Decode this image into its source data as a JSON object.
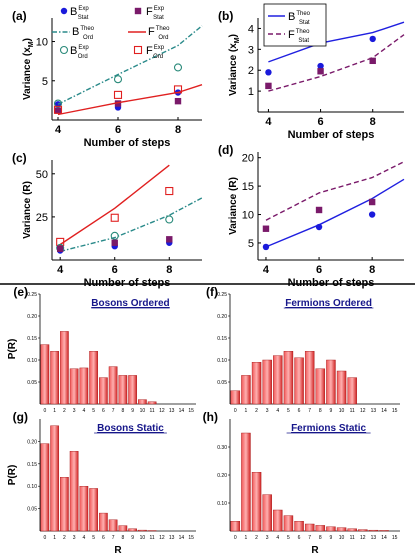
{
  "chart_data": [
    {
      "panel": "(a)",
      "type": "line",
      "ylabel": "Variance (x_M)",
      "xlabel": "Number of steps",
      "xlim": [
        3.8,
        8.8
      ],
      "ylim": [
        0,
        13
      ],
      "xticks": [
        4,
        6,
        8
      ],
      "yticks": [
        5,
        10
      ],
      "legend": [
        "B_Stat Exp",
        "F_Stat Exp",
        "B_Ord Theo",
        "F_Ord Theo",
        "B_Ord Exp",
        "F_Ord Exp"
      ],
      "series": [
        {
          "name": "B_Stat Exp",
          "x": [
            4,
            6,
            8
          ],
          "y": [
            2.0,
            1.6,
            3.5
          ]
        },
        {
          "name": "F_Stat Exp",
          "x": [
            4,
            6,
            8
          ],
          "y": [
            1.2,
            2.1,
            2.4
          ]
        },
        {
          "name": "B_Ord Theo",
          "x": [
            4,
            6,
            8,
            8.8
          ],
          "y": [
            2.0,
            5.8,
            9.5,
            12.0
          ]
        },
        {
          "name": "F_Ord Theo",
          "x": [
            4,
            6,
            8,
            8.8
          ],
          "y": [
            0.7,
            2.2,
            3.5,
            4.5
          ]
        },
        {
          "name": "B_Ord Exp",
          "x": [
            4,
            6,
            8
          ],
          "y": [
            2.1,
            5.2,
            6.7
          ]
        },
        {
          "name": "F_Ord Exp",
          "x": [
            4,
            6,
            8
          ],
          "y": [
            1.3,
            3.2,
            3.9
          ]
        }
      ]
    },
    {
      "panel": "(b)",
      "type": "line",
      "ylabel": "Variance (x_M)",
      "xlabel": "Number of steps",
      "xlim": [
        3.6,
        9.2
      ],
      "ylim": [
        0,
        4.5
      ],
      "xticks": [
        4,
        6,
        8
      ],
      "yticks": [
        1,
        2,
        3,
        4
      ],
      "legend": [
        "B_Stat Theo",
        "F_Stat Theo"
      ],
      "series": [
        {
          "name": "B_Stat Theo",
          "x": [
            4,
            6,
            8,
            9.2
          ],
          "y": [
            2.4,
            3.3,
            3.8,
            4.3
          ]
        },
        {
          "name": "F_Stat Theo",
          "x": [
            4,
            6,
            8,
            9.2
          ],
          "y": [
            1.0,
            1.7,
            2.6,
            3.7
          ]
        },
        {
          "name": "B_Stat Exp",
          "x": [
            4,
            6,
            8
          ],
          "y": [
            1.9,
            2.2,
            3.5
          ]
        },
        {
          "name": "F_Stat Exp",
          "x": [
            4,
            6,
            8
          ],
          "y": [
            1.25,
            1.95,
            2.45
          ]
        }
      ]
    },
    {
      "panel": "(c)",
      "type": "line",
      "ylabel": "Variance (R)",
      "xlabel": "Number of steps",
      "xlim": [
        3.7,
        9.2
      ],
      "ylim": [
        0,
        58
      ],
      "xticks": [
        4,
        6,
        8
      ],
      "yticks": [
        25,
        50
      ],
      "series": [
        {
          "name": "F_Ord Theo",
          "x": [
            4,
            6,
            8
          ],
          "y": [
            9,
            30,
            55
          ]
        },
        {
          "name": "B_Ord Theo",
          "x": [
            4,
            6,
            8,
            9.2
          ],
          "y": [
            5,
            13,
            26,
            36
          ]
        },
        {
          "name": "F_Ord Exp",
          "x": [
            4,
            6,
            8
          ],
          "y": [
            10.5,
            24.5,
            40
          ]
        },
        {
          "name": "B_Ord Exp",
          "x": [
            4,
            6,
            8
          ],
          "y": [
            7,
            14,
            23.5
          ]
        },
        {
          "name": "B_Stat Exp",
          "x": [
            4,
            6,
            8
          ],
          "y": [
            5.5,
            8,
            10
          ]
        },
        {
          "name": "F_Stat Exp",
          "x": [
            4,
            6,
            8
          ],
          "y": [
            6.5,
            10,
            12
          ]
        }
      ]
    },
    {
      "panel": "(d)",
      "type": "line",
      "ylabel": "Variance (R)",
      "xlabel": "Number of steps",
      "xlim": [
        3.7,
        9.2
      ],
      "ylim": [
        2,
        21
      ],
      "xticks": [
        4,
        6,
        8
      ],
      "yticks": [
        5,
        10,
        15,
        20
      ],
      "series": [
        {
          "name": "B_Stat Theo",
          "x": [
            4,
            6,
            8,
            9.2
          ],
          "y": [
            4.3,
            8.2,
            12.8,
            16.2
          ]
        },
        {
          "name": "F_Stat Theo",
          "x": [
            4,
            6,
            8,
            9.2
          ],
          "y": [
            9.0,
            13.8,
            16.5,
            19.3
          ]
        },
        {
          "name": "B_Stat Exp",
          "x": [
            4,
            6,
            8
          ],
          "y": [
            4.3,
            7.8,
            10
          ]
        },
        {
          "name": "F_Stat Exp",
          "x": [
            4,
            6,
            8
          ],
          "y": [
            7.5,
            10.8,
            12.2
          ]
        }
      ]
    },
    {
      "panel": "(e)",
      "type": "bar",
      "title": "Bosons Ordered",
      "ylabel": "P(R)",
      "ylim": [
        0,
        0.25
      ],
      "yticks": [
        0.05,
        0.1,
        0.15,
        0.2,
        0.25
      ],
      "categories": [
        0,
        1,
        2,
        3,
        4,
        5,
        6,
        7,
        8,
        9,
        10,
        11,
        12,
        13,
        14,
        15
      ],
      "values": [
        0.135,
        0.12,
        0.165,
        0.08,
        0.082,
        0.12,
        0.06,
        0.085,
        0.065,
        0.065,
        0.01,
        0.005,
        0,
        0,
        0,
        0
      ]
    },
    {
      "panel": "(f)",
      "type": "bar",
      "title": "Fermions Ordered",
      "ylim": [
        0,
        0.25
      ],
      "yticks": [
        0.05,
        0.1,
        0.15,
        0.2,
        0.25
      ],
      "categories": [
        0,
        1,
        2,
        3,
        4,
        5,
        6,
        7,
        8,
        9,
        10,
        11,
        12,
        13,
        14,
        15
      ],
      "values": [
        0.03,
        0.065,
        0.095,
        0.1,
        0.11,
        0.12,
        0.105,
        0.12,
        0.08,
        0.1,
        0.075,
        0.06,
        0,
        0,
        0,
        0
      ]
    },
    {
      "panel": "(g)",
      "type": "bar",
      "title": "Bosons Static",
      "ylabel": "P(R)",
      "xlabel": "R",
      "ylim": [
        0,
        0.25
      ],
      "yticks": [
        0.05,
        0.1,
        0.15,
        0.2
      ],
      "categories": [
        0,
        1,
        2,
        3,
        4,
        5,
        6,
        7,
        8,
        9,
        10,
        11,
        12,
        13,
        14,
        15
      ],
      "values": [
        0.195,
        0.235,
        0.12,
        0.178,
        0.1,
        0.095,
        0.04,
        0.025,
        0.012,
        0.005,
        0.002,
        0.001,
        0,
        0,
        0,
        0
      ]
    },
    {
      "panel": "(h)",
      "type": "bar",
      "title": "Fermions Static",
      "xlabel": "R",
      "ylim": [
        0,
        0.4
      ],
      "yticks": [
        0.1,
        0.2,
        0.3
      ],
      "categories": [
        0,
        1,
        2,
        3,
        4,
        5,
        6,
        7,
        8,
        9,
        10,
        11,
        12,
        13,
        14,
        15
      ],
      "values": [
        0.035,
        0.35,
        0.21,
        0.13,
        0.075,
        0.055,
        0.035,
        0.025,
        0.02,
        0.015,
        0.012,
        0.008,
        0.005,
        0.003,
        0.002,
        0
      ]
    }
  ]
}
